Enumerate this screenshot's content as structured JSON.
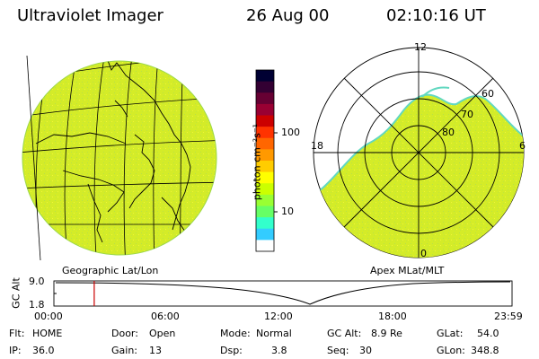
{
  "header": {
    "instrument": "Ultraviolet Imager",
    "date": "26 Aug 00",
    "time": "02:10:16 UT"
  },
  "colorbar": {
    "unit_label": "photon cm⁻²s⁻¹",
    "ticks": [
      "100",
      "10"
    ],
    "colors": [
      "#000033",
      "#330033",
      "#660033",
      "#990033",
      "#cc0000",
      "#ff3300",
      "#ff6600",
      "#ff9900",
      "#ffcc00",
      "#ffff00",
      "#ccff00",
      "#99ff33",
      "#66ff66",
      "#33ffcc",
      "#33ccff",
      "#ffffff"
    ]
  },
  "geo_panel": {
    "label": "Geographic Lat/Lon",
    "fill_color": "#d8ef2a"
  },
  "polar_panel": {
    "label": "Apex MLat/MLT",
    "mlt_labels": [
      "12",
      "6",
      "18",
      "0"
    ],
    "mlat_labels": [
      "60",
      "70",
      "80"
    ],
    "fill_color": "#d8ef2a"
  },
  "altitude_plot": {
    "ylabel": "GC Alt",
    "yticks": [
      "9.0",
      "1.8"
    ],
    "xticks": [
      "00:00",
      "06:00",
      "12:00",
      "18:00",
      "23:59"
    ],
    "current_time_fraction": 0.088
  },
  "footer": {
    "flt_label": "Flt:",
    "flt_value": "HOME",
    "ip_label": "IP:",
    "ip_value": "36.0",
    "door_label": "Door:",
    "door_value": "Open",
    "gain_label": "Gain:",
    "gain_value": "13",
    "mode_label": "Mode:",
    "mode_value": "Normal",
    "dsp_label": "Dsp:",
    "dsp_value": "3.8",
    "gcalt_label": "GC Alt:",
    "gcalt_value": "8.9 Re",
    "seq_label": "Seq:",
    "seq_value": "30",
    "glat_label": "GLat:",
    "glat_value": "54.0",
    "glon_label": "GLon:",
    "glon_value": "348.8"
  }
}
